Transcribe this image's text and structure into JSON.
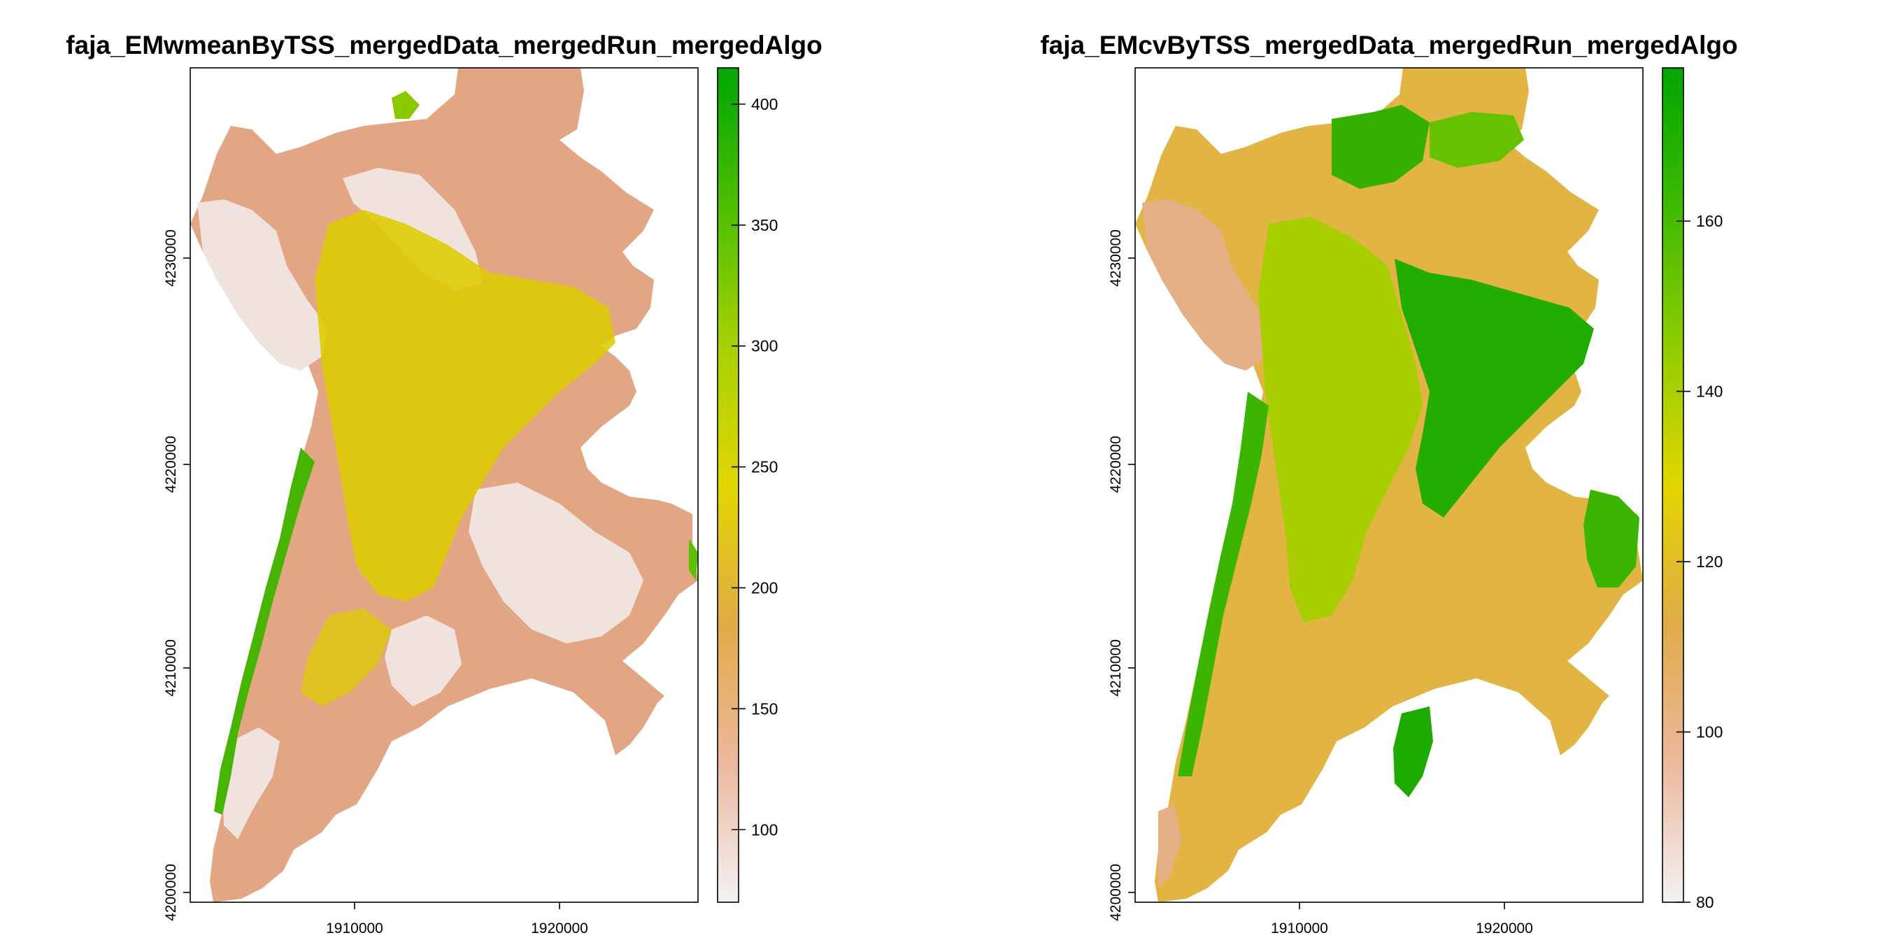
{
  "panels": [
    {
      "title": "faja_EMwmeanByTSS_mergedData_mergedRun_mergedAlgo",
      "x_ticks": [
        "1910000",
        "1920000"
      ],
      "y_ticks": [
        "4200000",
        "4210000",
        "4220000",
        "4230000"
      ],
      "legend": {
        "labels": [
          "100",
          "150",
          "200",
          "250",
          "300",
          "350",
          "400"
        ],
        "values": [
          100,
          150,
          200,
          250,
          300,
          350,
          400
        ],
        "range": [
          70,
          415
        ],
        "colors": [
          "#f2f2f2",
          "#ecb89e",
          "#e0ab47",
          "#e2d600",
          "#a6d100",
          "#4dbe00",
          "#00a600"
        ]
      }
    },
    {
      "title": "faja_EMcvByTSS_mergedData_mergedRun_mergedAlgo",
      "x_ticks": [
        "1910000",
        "1920000"
      ],
      "y_ticks": [
        "4200000",
        "4210000",
        "4220000",
        "4230000"
      ],
      "legend": {
        "labels": [
          "80",
          "100",
          "120",
          "140",
          "160"
        ],
        "values": [
          80,
          100,
          120,
          140,
          160
        ],
        "range": [
          80,
          178
        ],
        "colors": [
          "#f2f2f2",
          "#ecb89e",
          "#e0ab47",
          "#e2d600",
          "#8fcc00",
          "#3eba00",
          "#00a600"
        ]
      }
    }
  ],
  "axes": {
    "x_range": [
      1902000,
      1927000
    ],
    "y_range": [
      4199500,
      4240500
    ],
    "x_tick_values": [
      1910000,
      1920000
    ],
    "y_tick_values": [
      4200000,
      4210000,
      4220000,
      4230000
    ]
  }
}
